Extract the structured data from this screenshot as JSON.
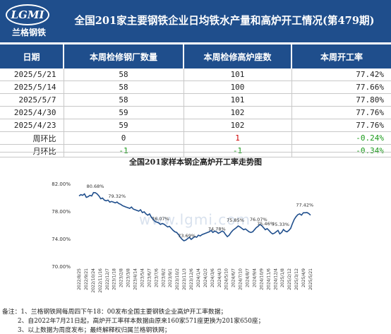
{
  "logo": {
    "brand": "LGMI",
    "name_cn": "兰格钢铁"
  },
  "title": "全国201家主要钢铁企业日均铁水产量和高炉开工情况(第479期)",
  "table": {
    "headers": [
      "日期",
      "本周检修钢厂数量",
      "本周检修高炉座数",
      "本周开工率"
    ],
    "rows": [
      [
        "2025/5/21",
        "58",
        "101",
        "77.42%"
      ],
      [
        "2025/5/14",
        "58",
        "100",
        "77.66%"
      ],
      [
        "2025/5/7",
        "58",
        "101",
        "77.80%"
      ],
      [
        "2025/4/30",
        "59",
        "102",
        "77.76%"
      ],
      [
        "2025/4/23",
        "59",
        "102",
        "77.76%"
      ]
    ],
    "compare_rows": [
      {
        "label": "周环比",
        "values": [
          "0",
          "1",
          "-0.24%"
        ],
        "signs": [
          "zero",
          "pos",
          "neg"
        ]
      },
      {
        "label": "月环比",
        "values": [
          "-1",
          "-1",
          "-0.34%"
        ],
        "signs": [
          "neg",
          "neg",
          "neg"
        ]
      }
    ]
  },
  "colors": {
    "header_bg": "#1f4e8c",
    "line": "#1f4e8c",
    "up": "#d00000",
    "down": "#1a9a1a"
  },
  "watermark": "www.lgmi.com",
  "chart_data": {
    "type": "line",
    "title": "全国201家样本钢企高炉开工率走势图",
    "ylim": [
      70,
      82
    ],
    "yticks": [
      "70.00%",
      "74.00%",
      "78.00%",
      "82.00%"
    ],
    "x_tick_labels": [
      "2022/8/25",
      "2022/9/21",
      "2022/10/24",
      "2022/11/16",
      "2022/12/7",
      "2023/1/18",
      "2023/2/8",
      "2023/3/8",
      "2023/4/14",
      "2023/5/4",
      "2023/6/7",
      "2023/7/6",
      "2023/8/2",
      "2023/9/1",
      "2023/10/2",
      "2023/11/3",
      "2023/12/6",
      "2024/1/4",
      "2024/2/2",
      "2024/3/6",
      "2024/4/3",
      "2024/5/10",
      "2024/6/7",
      "2024/7/10",
      "2024/8/7",
      "2024/9/4",
      "2024/10/9",
      "2024/11/6",
      "2024/12/4",
      "2025/1/8",
      "2025/2/12",
      "2025/3/12",
      "2025/4/9",
      "2025/5/21"
    ],
    "annotations": [
      {
        "text": "80.68%",
        "value": 80.68
      },
      {
        "text": "79.32%",
        "value": 79.32
      },
      {
        "text": "76.07%",
        "value": 76.07
      },
      {
        "text": "73.69%",
        "value": 73.69
      },
      {
        "text": "74.78%",
        "value": 74.78
      },
      {
        "text": "75.85%",
        "value": 75.85
      },
      {
        "text": "76.07%",
        "value": 76.07
      },
      {
        "text": "75.46%",
        "value": 75.46
      },
      {
        "text": "75.33%",
        "value": 75.33
      },
      {
        "text": "77.42%",
        "value": 77.42
      }
    ],
    "series": [
      {
        "values": [
          80.2,
          80.4,
          80.3,
          80.5,
          80.0,
          80.1,
          80.3,
          80.2,
          80.7,
          80.68,
          80.5,
          80.2,
          79.8,
          79.9,
          79.6,
          79.5,
          79.6,
          79.3,
          79.4,
          79.3,
          79.2,
          79.32,
          79.1,
          79.0,
          78.8,
          78.7,
          78.6,
          78.5,
          78.4,
          78.6,
          78.3,
          78.2,
          78.1,
          78.0,
          78.2,
          77.8,
          77.9,
          77.6,
          77.4,
          77.6,
          77.1,
          76.8,
          76.5,
          76.4,
          76.3,
          76.07,
          76.2,
          76.1,
          75.9,
          75.7,
          75.8,
          75.5,
          75.2,
          75.0,
          74.9,
          74.6,
          74.2,
          73.9,
          73.69,
          73.8,
          74.0,
          74.2,
          73.9,
          74.1,
          74.3,
          74.2,
          74.5,
          74.4,
          74.6,
          74.7,
          74.8,
          74.9,
          75.0,
          75.2,
          74.9,
          75.1,
          75.0,
          74.78,
          74.9,
          75.1,
          75.0,
          74.6,
          74.3,
          74.5,
          74.9,
          75.2,
          75.4,
          75.6,
          75.85,
          75.7,
          75.5,
          75.3,
          75.4,
          75.2,
          75.0,
          74.9,
          75.0,
          75.3,
          75.6,
          75.8,
          76.07,
          75.9,
          75.6,
          75.3,
          75.46,
          75.2,
          74.9,
          74.7,
          74.8,
          75.0,
          75.2,
          74.7,
          74.9,
          75.33,
          75.1,
          75.0,
          75.2,
          75.5,
          76.2,
          76.8,
          77.2,
          77.5,
          77.6,
          77.42,
          77.76,
          77.76,
          77.8,
          77.66,
          77.42
        ]
      }
    ]
  },
  "notes": [
    "备注：1、兰格钢铁网每周四下午18：00发布全国主要钢铁企业高炉开工率数据；",
    "2、自2022年7月21日起，高炉开工率样本数据由原来160家571座更换为201家650座；",
    "3、以上数据为周度发布；最终解释权归属兰格钢铁网；"
  ]
}
